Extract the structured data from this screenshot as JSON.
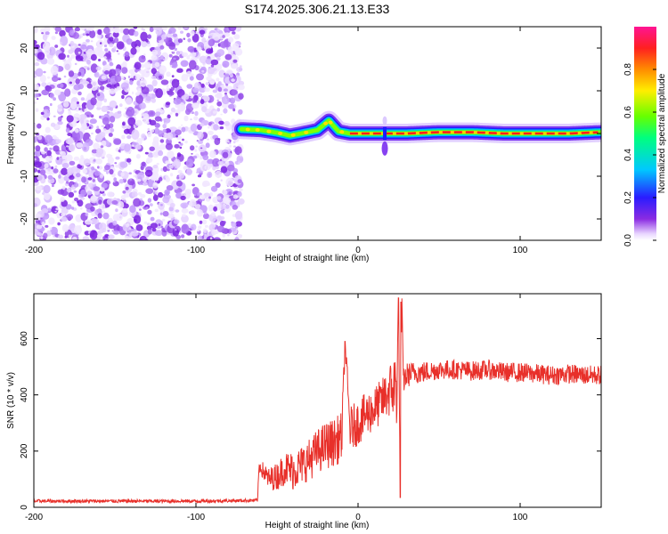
{
  "figure": {
    "title": "S174.2025.306.21.13.E33"
  },
  "chart_data": [
    {
      "type": "heatmap",
      "title": "S174.2025.306.21.13.E33",
      "xlabel": "Height of straight line (km)",
      "ylabel": "Frequency (Hz)",
      "xlim": [
        -200,
        150
      ],
      "ylim": [
        -25,
        25
      ],
      "xticks": [
        -200,
        -100,
        0,
        100
      ],
      "xtick_labels": [
        "-200",
        "-100",
        "0",
        "100"
      ],
      "yticks": [
        -20,
        -10,
        0,
        10,
        20
      ],
      "ytick_labels": [
        "-20",
        "-10",
        "0",
        "10",
        "20"
      ],
      "colorbar": {
        "label": "Normalized spectral amplitude",
        "range": [
          0,
          1
        ],
        "ticks": [
          0,
          0.2,
          0.4,
          0.6,
          0.8
        ],
        "tick_labels": [
          "0.0",
          "0.2",
          "0.4",
          "0.6",
          "0.8"
        ]
      },
      "regions": [
        {
          "name": "noise",
          "x_range": [
            -200,
            -72
          ],
          "freq_range": [
            -25,
            25
          ],
          "amplitude_range": [
            0.0,
            0.15
          ]
        },
        {
          "name": "signal",
          "x_range": [
            -72,
            150
          ],
          "center_freq_hz": 0,
          "amplitude_max": 1.0
        }
      ],
      "ridge": {
        "x": [
          -72,
          -60,
          -50,
          -42,
          -35,
          -25,
          -18,
          -12,
          -5,
          0,
          10,
          16,
          18,
          20,
          30,
          50,
          70,
          90,
          110,
          130,
          150
        ],
        "freq": [
          1.0,
          0.8,
          0.2,
          -0.5,
          0.0,
          0.8,
          3.0,
          0.5,
          0.0,
          0.0,
          0.0,
          0.0,
          0.0,
          0.0,
          0.0,
          0.3,
          0.3,
          0.0,
          0.0,
          0.0,
          0.3
        ]
      }
    },
    {
      "type": "line",
      "xlabel": "Height of straight line (km)",
      "ylabel": "SNR (10 * v/v)",
      "xlim": [
        -200,
        150
      ],
      "ylim": [
        0,
        760
      ],
      "xticks": [
        -200,
        -100,
        0,
        100
      ],
      "xtick_labels": [
        "-200",
        "-100",
        "0",
        "100"
      ],
      "yticks": [
        0,
        200,
        400,
        600
      ],
      "ytick_labels": [
        "0",
        "200",
        "400",
        "600"
      ],
      "series": [
        {
          "name": "SNR",
          "color": "#e8302a",
          "x": [
            -200,
            -150,
            -100,
            -70,
            -62,
            -61,
            -55,
            -50,
            -45,
            -40,
            -35,
            -30,
            -25,
            -20,
            -15,
            -10,
            -8,
            -5,
            0,
            5,
            10,
            15,
            20,
            24,
            25,
            26,
            27,
            28,
            30,
            35,
            40,
            50,
            60,
            70,
            80,
            90,
            100,
            110,
            120,
            130,
            140,
            150
          ],
          "y": [
            22,
            22,
            22,
            24,
            25,
            150,
            100,
            110,
            140,
            130,
            150,
            170,
            200,
            220,
            230,
            250,
            590,
            280,
            300,
            330,
            350,
            380,
            420,
            430,
            740,
            30,
            730,
            450,
            470,
            480,
            480,
            490,
            490,
            485,
            490,
            480,
            480,
            475,
            470,
            475,
            470,
            470
          ],
          "noise_amplitude": [
            6,
            6,
            6,
            6,
            6,
            25,
            40,
            50,
            60,
            70,
            70,
            75,
            80,
            85,
            85,
            90,
            30,
            80,
            80,
            80,
            80,
            80,
            100,
            150,
            30,
            20,
            30,
            45,
            45,
            40,
            40,
            35,
            35,
            35,
            35,
            35,
            35,
            35,
            35,
            35,
            35,
            35
          ]
        }
      ]
    }
  ]
}
